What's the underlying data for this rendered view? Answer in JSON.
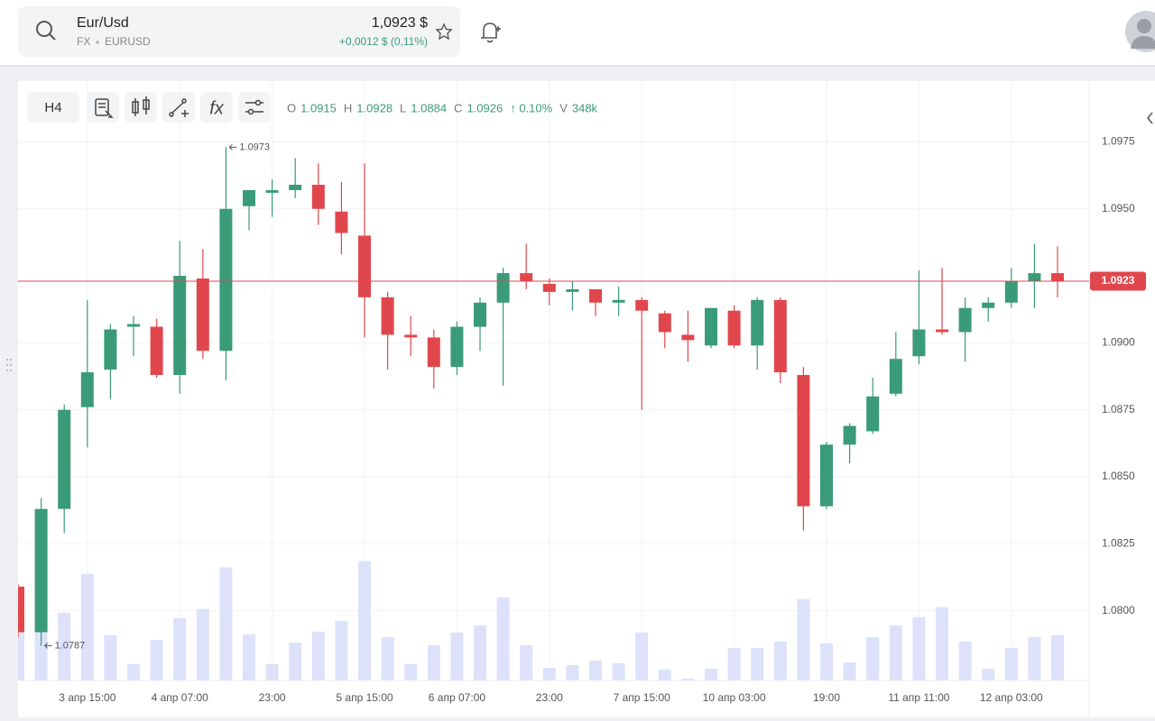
{
  "header": {
    "symbol": "Eur/Usd",
    "market": "FX",
    "ticker": "EURUSD",
    "price": "1,0923 $",
    "change": "+0,0012 $ (0,11%)"
  },
  "toolbar": {
    "interval": "H4"
  },
  "chart_data": {
    "type": "candlestick",
    "categories": [
      null,
      null,
      null,
      "3 апр 15:00",
      null,
      null,
      null,
      "4 апр 07:00",
      null,
      null,
      null,
      "23:00",
      null,
      null,
      null,
      "5 апр 15:00",
      null,
      null,
      null,
      "6 апр 07:00",
      null,
      null,
      null,
      "23:00",
      null,
      null,
      null,
      "7 апр 15:00",
      null,
      null,
      null,
      "10 апр 03:00",
      null,
      null,
      null,
      "19:00",
      null,
      null,
      null,
      "11 апр 11:00",
      null,
      null,
      null,
      "12 апр 03:00",
      null,
      null
    ],
    "open": [
      1.0809,
      1.0792,
      1.0838,
      1.0876,
      1.089,
      1.0906,
      1.0906,
      1.0888,
      1.0924,
      1.0897,
      1.0951,
      1.0956,
      1.0957,
      1.0959,
      1.0949,
      1.094,
      1.0917,
      1.0903,
      1.0902,
      1.0891,
      1.0906,
      1.0915,
      1.0926,
      1.0922,
      1.0919,
      1.092,
      1.0915,
      1.0916,
      1.0911,
      1.0903,
      1.0899,
      1.0912,
      1.0899,
      1.0916,
      1.0888,
      1.0839,
      1.0862,
      1.0867,
      1.0881,
      1.0895,
      1.0905,
      1.0904,
      1.0913,
      1.0915,
      1.0923,
      1.0926
    ],
    "high": [
      1.081,
      1.0842,
      1.0877,
      1.0916,
      1.0907,
      1.091,
      1.0909,
      1.0938,
      1.0935,
      1.0973,
      1.0957,
      1.0961,
      1.0969,
      1.0967,
      1.096,
      1.0967,
      1.0919,
      1.091,
      1.0905,
      1.0908,
      1.0917,
      1.0928,
      1.0937,
      1.0924,
      1.0923,
      1.092,
      1.0921,
      1.0917,
      1.0912,
      1.0912,
      1.0913,
      1.0914,
      1.0917,
      1.0917,
      1.0891,
      1.0863,
      1.087,
      1.0887,
      1.0904,
      1.0927,
      1.0928,
      1.0917,
      1.0917,
      1.0928,
      1.0937,
      1.0936
    ],
    "low": [
      1.079,
      1.0787,
      1.0829,
      1.0861,
      1.0879,
      1.0895,
      1.0887,
      1.0881,
      1.0894,
      1.0886,
      1.0942,
      1.0947,
      1.0954,
      1.0944,
      1.0933,
      1.0902,
      1.089,
      1.0895,
      1.0883,
      1.0888,
      1.0897,
      1.0884,
      1.092,
      1.0914,
      1.0912,
      1.091,
      1.091,
      1.0875,
      1.0898,
      1.0893,
      1.0898,
      1.0898,
      1.089,
      1.0885,
      1.083,
      1.0838,
      1.0855,
      1.0866,
      1.088,
      1.0892,
      1.0903,
      1.0893,
      1.0908,
      1.0913,
      1.0913,
      1.0917
    ],
    "close": [
      1.0792,
      1.0838,
      1.0875,
      1.0889,
      1.0905,
      1.0907,
      1.0888,
      1.0925,
      1.0897,
      1.095,
      1.0957,
      1.0957,
      1.0959,
      1.095,
      1.0941,
      1.0917,
      1.0903,
      1.0902,
      1.0891,
      1.0906,
      1.0915,
      1.0926,
      1.0923,
      1.0919,
      1.092,
      1.0915,
      1.0916,
      1.0912,
      1.0904,
      1.0901,
      1.0913,
      1.0899,
      1.0916,
      1.0889,
      1.0839,
      1.0862,
      1.0869,
      1.088,
      1.0894,
      1.0905,
      1.0904,
      1.0913,
      1.0915,
      1.0923,
      1.0926,
      1.0923
    ],
    "volume": [
      571,
      452,
      522,
      821,
      348,
      125,
      313,
      480,
      550,
      870,
      355,
      125,
      292,
      376,
      459,
      919,
      334,
      125,
      271,
      369,
      425,
      640,
      271,
      97,
      118,
      153,
      132,
      369,
      84,
      14,
      90,
      251,
      251,
      299,
      626,
      285,
      139,
      334,
      425,
      487,
      564,
      299,
      90,
      251,
      334,
      348
    ],
    "up_color": "#3a9b78",
    "down_color": "#e0474c",
    "volume_color": "#dde2fa",
    "ylim": [
      1.0774,
      1.0997
    ],
    "yticks": [
      {
        "value": 1.08,
        "label": "1.0800"
      },
      1.0825,
      {
        "value": 1.085,
        "label": "1.0850"
      },
      1.0875,
      {
        "value": 1.09,
        "label": "1.0900"
      },
      {
        "value": 1.095,
        "label": "1.0950"
      },
      1.0975
    ],
    "volume_lim": [
      0,
      4600
    ],
    "grid": true,
    "legend": [
      {
        "label": "O",
        "value": 1.0915
      },
      {
        "label": "H",
        "value": 1.0928
      },
      {
        "label": "L",
        "value": 1.0884
      },
      {
        "label": "C",
        "value": 1.0926
      }
    ],
    "legend_change": "↑ 0.10%",
    "legend_volume_label": "V",
    "legend_volume": "348k",
    "price_line": 1.0923,
    "high_marker": 1.0973,
    "low_marker": 1.0787
  }
}
